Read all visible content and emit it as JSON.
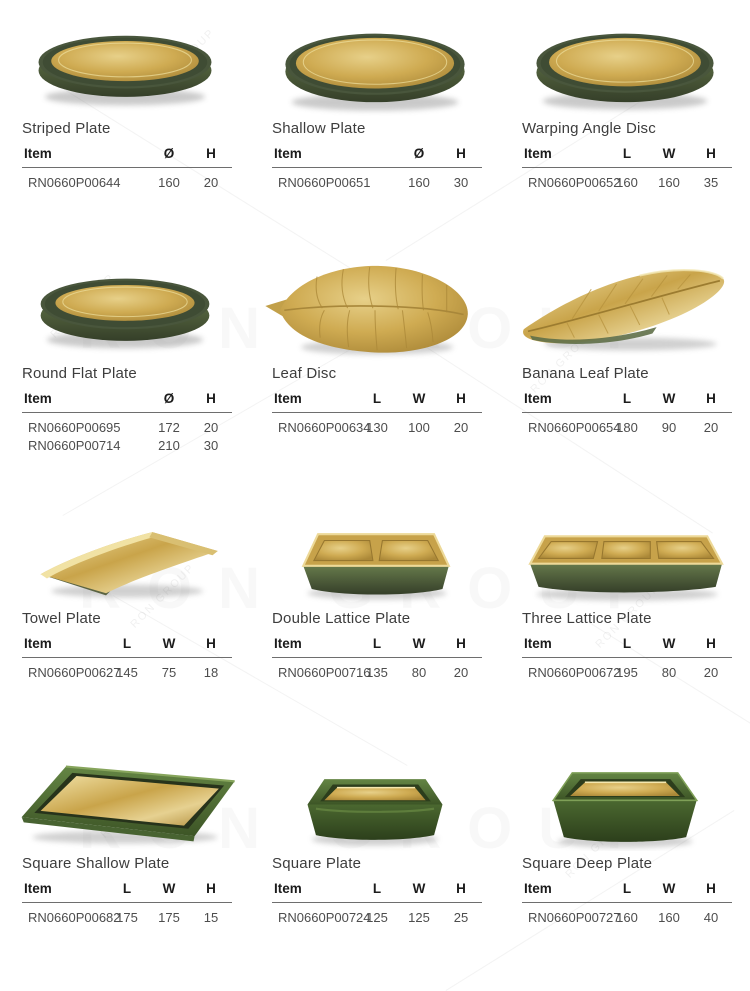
{
  "watermark": {
    "text": "RON GROUP"
  },
  "spec_table": {
    "item_header": "Item"
  },
  "products": [
    {
      "name": "Striped Plate",
      "image": "plate-angle",
      "columns": [
        "Ø",
        "H"
      ],
      "rows": [
        {
          "item": "RN0660P00644",
          "values": [
            "160",
            "20"
          ]
        }
      ]
    },
    {
      "name": "Shallow Plate",
      "image": "plate-top",
      "columns": [
        "Ø",
        "H"
      ],
      "rows": [
        {
          "item": "RN0660P00651",
          "values": [
            "160",
            "30"
          ]
        }
      ]
    },
    {
      "name": "Warping Angle Disc",
      "image": "plate-warp",
      "columns": [
        "L",
        "W",
        "H"
      ],
      "rows": [
        {
          "item": "RN0660P00652",
          "values": [
            "160",
            "160",
            "35"
          ]
        }
      ]
    },
    {
      "name": "Round Flat Plate",
      "image": "plate-flat",
      "columns": [
        "Ø",
        "H"
      ],
      "rows": [
        {
          "item": "RN0660P00695",
          "values": [
            "172",
            "20"
          ]
        },
        {
          "item": "RN0660P00714",
          "values": [
            "210",
            "30"
          ]
        }
      ]
    },
    {
      "name": "Leaf Disc",
      "image": "leaf-disc",
      "columns": [
        "L",
        "W",
        "H"
      ],
      "rows": [
        {
          "item": "RN0660P00634",
          "values": [
            "130",
            "100",
            "20"
          ]
        }
      ]
    },
    {
      "name": "Banana Leaf Plate",
      "image": "banana-leaf",
      "columns": [
        "L",
        "W",
        "H"
      ],
      "rows": [
        {
          "item": "RN0660P00654",
          "values": [
            "180",
            "90",
            "20"
          ]
        }
      ]
    },
    {
      "name": "Towel Plate",
      "image": "towel",
      "columns": [
        "L",
        "W",
        "H"
      ],
      "rows": [
        {
          "item": "RN0660P00627",
          "values": [
            "145",
            "75",
            "18"
          ]
        }
      ]
    },
    {
      "name": "Double Lattice Plate",
      "image": "lattice-2",
      "columns": [
        "L",
        "W",
        "H"
      ],
      "rows": [
        {
          "item": "RN0660P00716",
          "values": [
            "135",
            "80",
            "20"
          ]
        }
      ]
    },
    {
      "name": "Three Lattice Plate",
      "image": "lattice-3",
      "columns": [
        "L",
        "W",
        "H"
      ],
      "rows": [
        {
          "item": "RN0660P00672",
          "values": [
            "195",
            "80",
            "20"
          ]
        }
      ]
    },
    {
      "name": "Square Shallow Plate",
      "image": "square-shallow",
      "columns": [
        "L",
        "W",
        "H"
      ],
      "rows": [
        {
          "item": "RN0660P00682",
          "values": [
            "175",
            "175",
            "15"
          ]
        }
      ]
    },
    {
      "name": "Square Plate",
      "image": "square",
      "columns": [
        "L",
        "W",
        "H"
      ],
      "rows": [
        {
          "item": "RN0660P00724",
          "values": [
            "125",
            "125",
            "25"
          ]
        }
      ]
    },
    {
      "name": "Square Deep Plate",
      "image": "square-deep",
      "columns": [
        "L",
        "W",
        "H"
      ],
      "rows": [
        {
          "item": "RN0660P00727",
          "values": [
            "160",
            "160",
            "40"
          ]
        }
      ]
    }
  ],
  "colors": {
    "gold": "#C9A44A",
    "green_olive": "#49563C",
    "green_bright": "#4E6B33",
    "text": "#3D3D3D"
  }
}
